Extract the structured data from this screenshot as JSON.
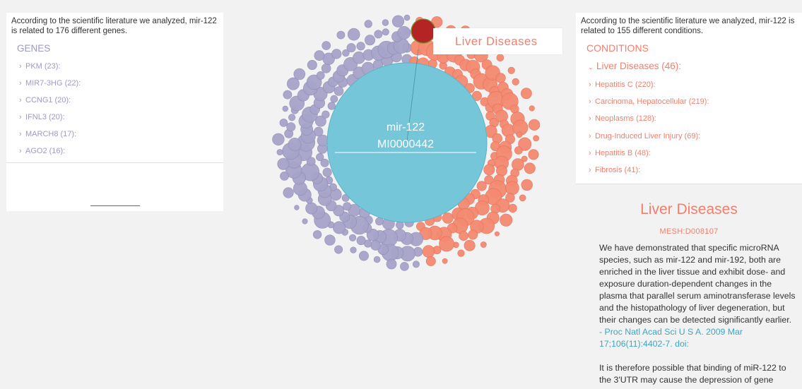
{
  "genes_panel": {
    "intro": "According to the scientific literature we analyzed, mir-122 is related to 176 different genes.",
    "header": "GENES",
    "items": [
      {
        "label": "PKM (23):"
      },
      {
        "label": "MIR7-3HG (22):"
      },
      {
        "label": "CCNG1 (20):"
      },
      {
        "label": "IFNL3 (20):"
      },
      {
        "label": "MARCH8 (17):"
      },
      {
        "label": "AGO2 (16):"
      }
    ]
  },
  "center": {
    "name": "mir-122",
    "accession": "MI0000442",
    "hover_label": "Liver Diseases",
    "colors": {
      "center": "#74c6d8",
      "genes": "#a7a4c9",
      "conditions": "#f58a71",
      "selected": "#b52424"
    }
  },
  "conditions_panel": {
    "intro": "According to the scientific literature we analyzed, mir-122 is related to 155 different conditions.",
    "header": "CONDITIONS",
    "expanded_group": "Liver Diseases (46):",
    "items": [
      {
        "label": "Hepatitis C (220):"
      },
      {
        "label": "Carcinoma, Hepatocellular (219):"
      },
      {
        "label": "Neoplasms (128):"
      },
      {
        "label": "Drug-Induced Liver Injury (69):"
      },
      {
        "label": "Hepatitis B (48):"
      },
      {
        "label": "Fibrosis (41):"
      }
    ]
  },
  "detail": {
    "title": "Liver Diseases",
    "mesh_id": "MESH:D008107",
    "paragraph1": "We have demonstrated that specific microRNA species, such as mir-122 and mir-192, both are enriched in the liver tissue and exhibit dose- and exposure duration-dependent changes in the plasma that parallel serum aminotransferase levels and the histopathology of liver degeneration, but their changes can be detected significantly earlier.",
    "citation1": "- Proc Natl Acad Sci U S A. 2009 Mar 17;106(11):4402-7. doi:",
    "paragraph2": "It is therefore possible that binding of miR-122 to the 3'UTR may cause the depression of gene"
  }
}
